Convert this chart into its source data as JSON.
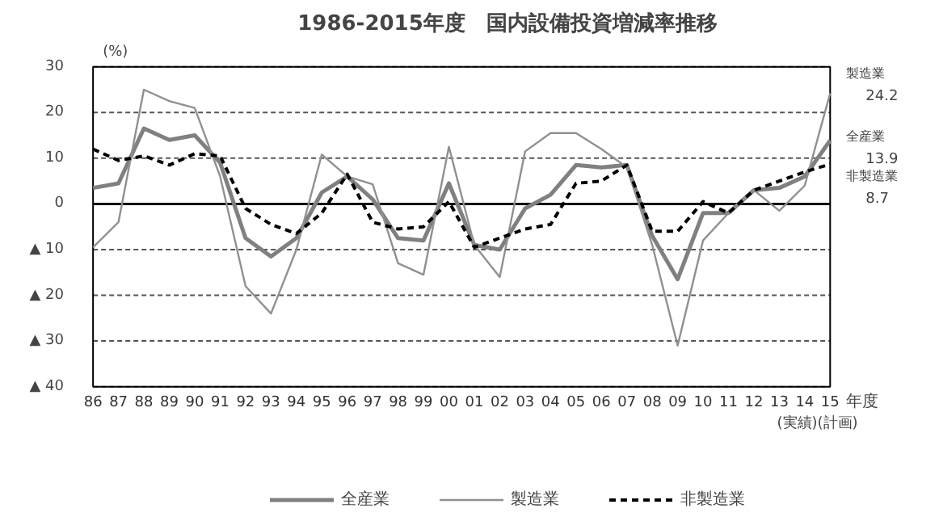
{
  "chart_data": {
    "type": "line",
    "title": "1986-2015年度　国内設備投資増減率推移",
    "ylabel": "(%)",
    "xlabel": "年度",
    "categories": [
      "86",
      "87",
      "88",
      "89",
      "90",
      "91",
      "92",
      "93",
      "94",
      "95",
      "96",
      "97",
      "98",
      "99",
      "00",
      "01",
      "02",
      "03",
      "04",
      "05",
      "06",
      "07",
      "08",
      "09",
      "10",
      "11",
      "12",
      "13",
      "14",
      "15"
    ],
    "series": [
      {
        "name": "全産業",
        "color": "#808080",
        "line_style": "solid",
        "values": [
          3.5,
          4.5,
          16.5,
          14,
          15,
          9,
          -7.5,
          -11.5,
          -7.5,
          2.5,
          6,
          1,
          -7.5,
          -8,
          4.5,
          -9,
          -10,
          -1,
          2,
          8.5,
          8,
          8.5,
          -7,
          -16.5,
          -2,
          -2,
          3,
          3.5,
          6,
          13.9
        ]
      },
      {
        "name": "製造業",
        "color": "#909090",
        "line_style": "solid",
        "values": [
          -9.5,
          -4,
          25,
          22.5,
          21,
          6,
          -18,
          -24,
          -10,
          10.8,
          6,
          4.3,
          -13,
          -15.5,
          12.5,
          -9,
          -16,
          11.5,
          15.5,
          15.5,
          12,
          8,
          -9,
          -31,
          -8,
          -2,
          3,
          -1.5,
          4,
          24.2
        ]
      },
      {
        "name": "非製造業",
        "color": "#000000",
        "line_style": "dashed",
        "values": [
          12,
          9.5,
          10.5,
          8.5,
          11,
          10.5,
          -1,
          -4.5,
          -6.5,
          -2,
          6.5,
          -4,
          -5.5,
          -5,
          0.5,
          -9.5,
          -7.5,
          -5.5,
          -4.5,
          4.5,
          5,
          8.5,
          -6,
          -6,
          0.5,
          -2,
          3,
          5,
          7,
          8.7
        ]
      }
    ],
    "ylim": [
      -40,
      30
    ],
    "yticks": [
      30,
      20,
      10,
      0,
      {
        "value": -10,
        "label": "▲ 10"
      },
      {
        "value": -20,
        "label": "▲ 20"
      },
      {
        "value": -30,
        "label": "▲ 30"
      },
      {
        "value": -40,
        "label": "▲ 40"
      }
    ],
    "grid": "y",
    "legend": "bottom",
    "ref_lines": [
      {
        "axis": "y",
        "value": 0,
        "color": "#000000",
        "line_style": "solid"
      }
    ],
    "annotations": [
      {
        "text": "製造業 24.2",
        "x": "15",
        "y": 24.2
      },
      {
        "text": "全産業 13.9",
        "x": "15",
        "y": 13.9
      },
      {
        "text": "非製造業 8.7",
        "x": "15",
        "y": 8.7
      },
      "(実績)(計画)"
    ]
  }
}
